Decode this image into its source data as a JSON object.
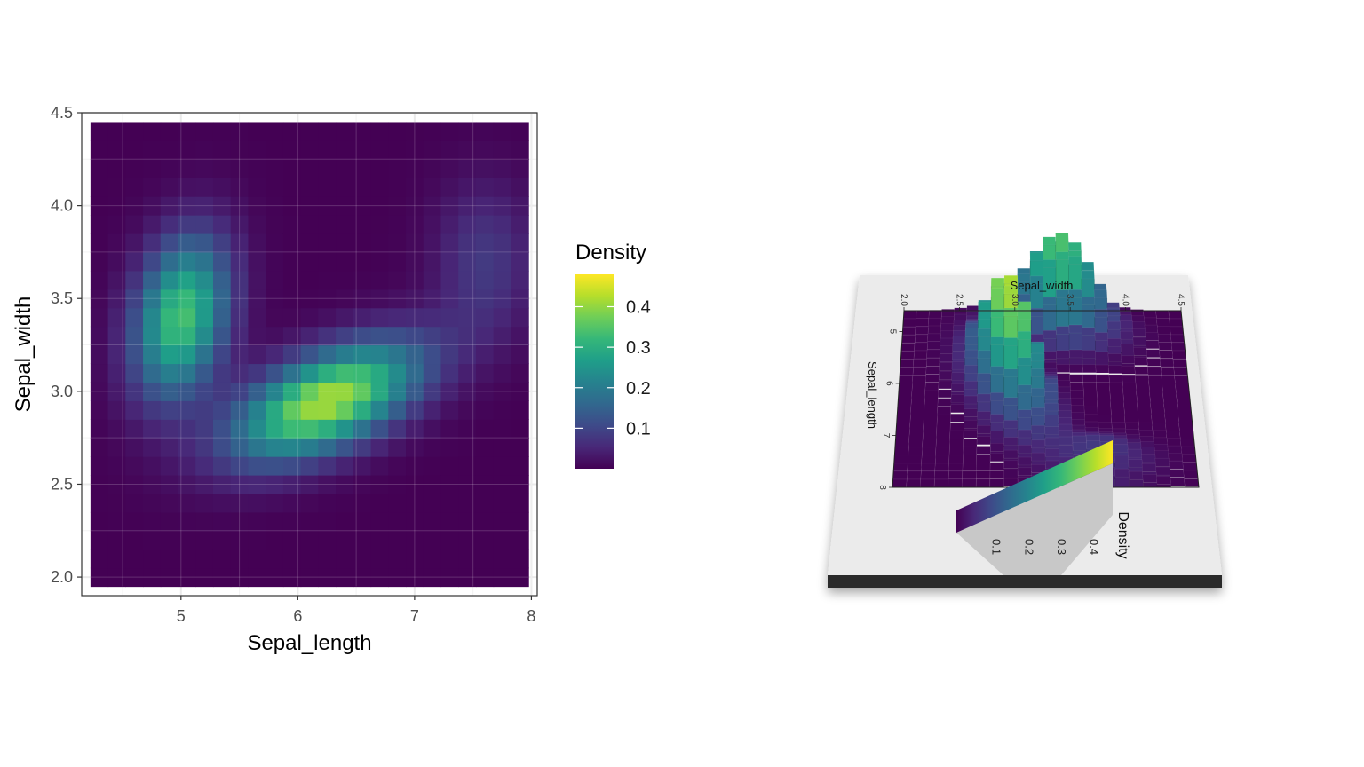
{
  "chart_data": [
    {
      "type": "heatmap",
      "title": "",
      "xlabel": "Sepal_length",
      "ylabel": "Sepal_width",
      "xlim": [
        4.15,
        8.05
      ],
      "ylim": [
        1.9,
        4.5
      ],
      "x_ticks": [
        "5",
        "6",
        "7",
        "8"
      ],
      "y_ticks": [
        "2.0",
        "2.5",
        "3.0",
        "3.5",
        "4.0",
        "4.5"
      ],
      "grid": true,
      "colormap": "viridis",
      "x_range": [
        4.3,
        7.9
      ],
      "y_range": [
        2.0,
        4.4
      ],
      "grid_cols": 25,
      "grid_rows": 25,
      "density_peaks": [
        {
          "x": 6.1,
          "y": 2.9,
          "peak": 0.46
        },
        {
          "x": 6.6,
          "y": 3.05,
          "peak": 0.39
        },
        {
          "x": 5.0,
          "y": 3.4,
          "peak": 0.36
        }
      ],
      "legend": {
        "title": "Density",
        "placement": "right",
        "range": [
          0,
          0.48
        ],
        "ticks": [
          "0.1",
          "0.2",
          "0.3",
          "0.4"
        ]
      }
    },
    {
      "type": "heatmap",
      "title": "",
      "xlabel": "Sepal_width",
      "ylabel": "Sepal_length",
      "x_ticks": [
        "2.0",
        "2.5",
        "3.0",
        "3.5",
        "4.0",
        "4.5"
      ],
      "y_ticks": [
        "5",
        "6",
        "7",
        "8"
      ],
      "legend": {
        "title": "Density",
        "ticks": [
          "0.1",
          "0.2",
          "0.3",
          "0.4"
        ]
      },
      "view": "3d"
    }
  ],
  "colors": {
    "viridis": [
      "#440154",
      "#482878",
      "#3e4a89",
      "#31688e",
      "#26828e",
      "#1f9e89",
      "#35b779",
      "#6ece58",
      "#b5de2b",
      "#fde725"
    ],
    "panel_border": "#333333",
    "gridline": "#ebebeb",
    "base_plate": "#ebebeb",
    "base_edge": "#2b2b2b"
  }
}
